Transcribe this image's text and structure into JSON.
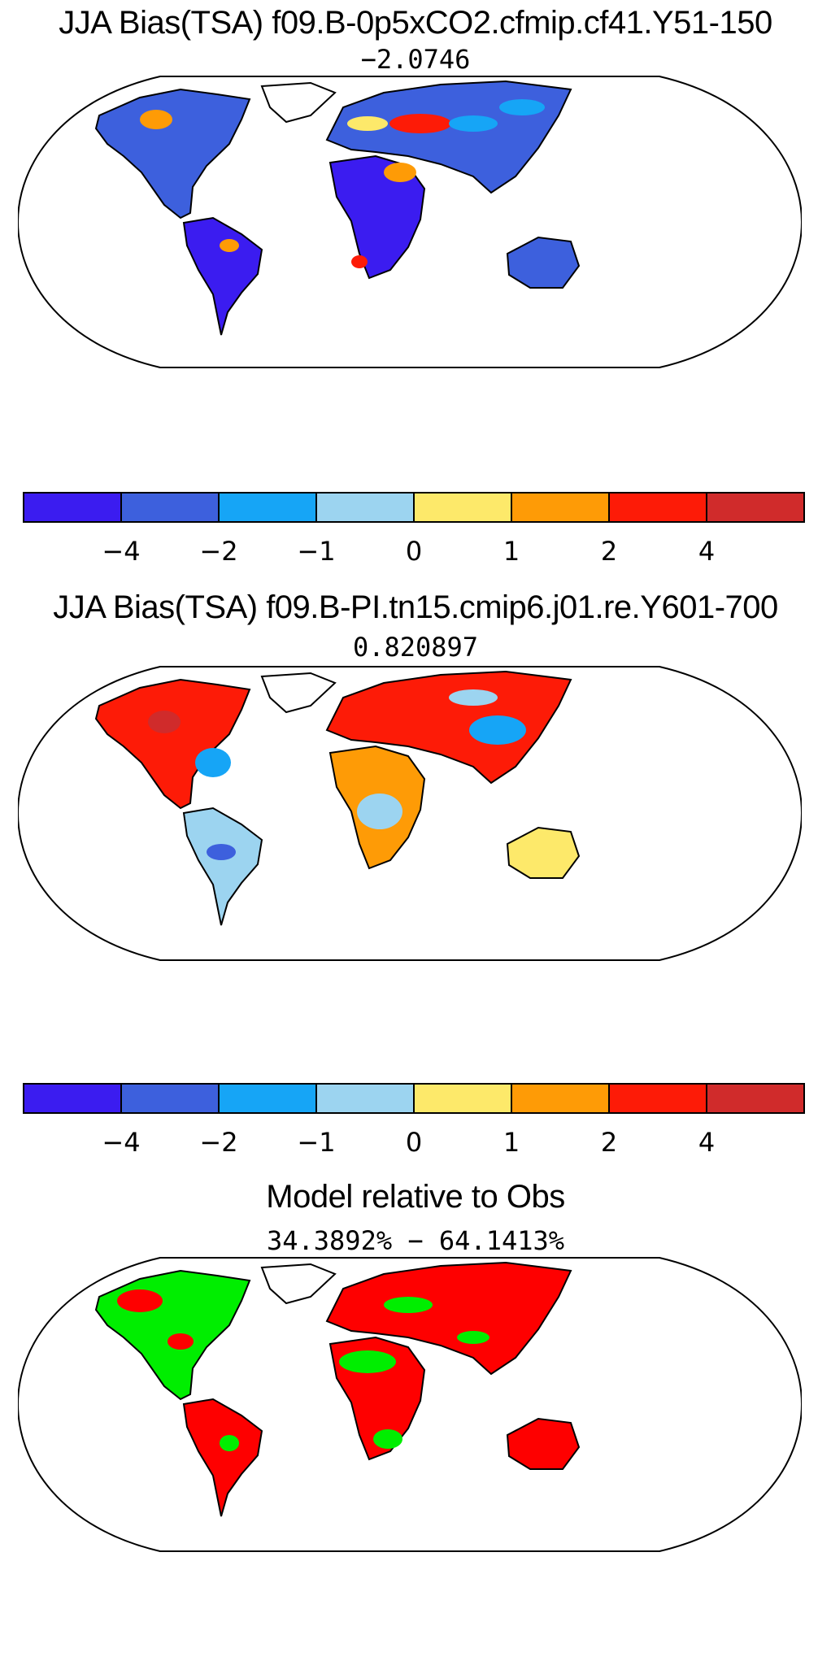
{
  "panels": [
    {
      "title": "JJA Bias(TSA) f09.B-0p5xCO2.cfmip.cf41.Y51-150",
      "subtitle": "−2.0746",
      "map": "bias-map",
      "colorbar": {
        "colors": [
          "#3b1cf0",
          "#3d60dd",
          "#16a5f6",
          "#9cd4f0",
          "#fde96a",
          "#fe9b06",
          "#fd1b07",
          "#d02b2b"
        ],
        "tick_labels": [
          "−4",
          "−2",
          "−1",
          "0",
          "1",
          "2",
          "4"
        ]
      }
    },
    {
      "title": "JJA Bias(TSA) f09.B-PI.tn15.cmip6.j01.re.Y601-700",
      "subtitle": "0.820897",
      "map": "bias-map",
      "colorbar": {
        "colors": [
          "#3b1cf0",
          "#3d60dd",
          "#16a5f6",
          "#9cd4f0",
          "#fde96a",
          "#fe9b06",
          "#fd1b07",
          "#d02b2b"
        ],
        "tick_labels": [
          "−4",
          "−2",
          "−1",
          "0",
          "1",
          "2",
          "4"
        ]
      }
    },
    {
      "title": "Model relative to Obs",
      "subtitle": "34.3892% − 64.1413%",
      "map": "comparison-map",
      "colors": [
        "#fe0000",
        "#00ee00"
      ]
    }
  ]
}
